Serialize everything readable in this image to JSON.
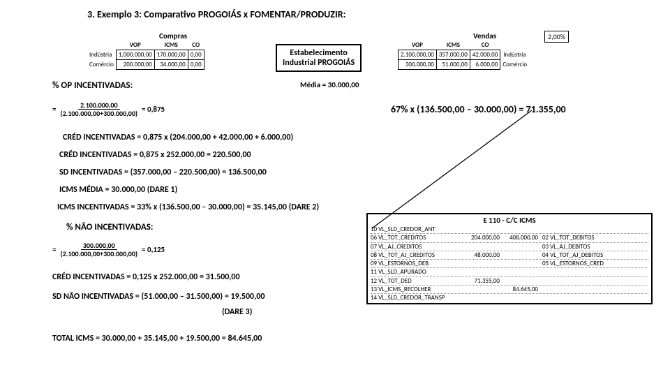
{
  "title": "3. Exemplo 3: Comparativo PROGOIÁS x FOMENTAR/PRODUZIR:",
  "compras": {
    "label": "Compras",
    "cols": [
      "VOP",
      "ICMS",
      "CO"
    ],
    "rows": [
      {
        "label": "Indústria",
        "vop": "1.000.000,00",
        "icms": "170.000,00",
        "co": "0,00"
      },
      {
        "label": "Comércio",
        "vop": "200.000,00",
        "icms": "34.000,00",
        "co": "0,00"
      }
    ]
  },
  "center_box": {
    "l1": "Estabelecimento",
    "l2": "Industrial PROGOIÁS"
  },
  "vendas": {
    "label": "Vendas",
    "cols": [
      "VOP",
      "ICMS",
      "CO"
    ],
    "rows": [
      {
        "vop": "2.100.000,00",
        "icms": "357.000,00",
        "co": "42.000,00",
        "label": "Indústria"
      },
      {
        "vop": "300.000,00",
        "icms": "51.000,00",
        "co": "6.000,00",
        "label": "Comércio"
      }
    ]
  },
  "pct_box": "2,00%",
  "media": "Média = 30.000,00",
  "op_inc": "% OP INCENTIVADAS:",
  "frac1": {
    "eq": "=",
    "num": "2.100.000,00",
    "den": "(2.100.000,00+300.000,00)",
    "res": "= 0,875"
  },
  "big_calc": "67% x (136.500,00 – 30.000,00) = 71.355,00",
  "lines": [
    "CRÉD INCENTIVADAS = 0,875 x (204.000,00 + 42.000,00 + 6.000,00)",
    "CRÉD INCENTIVADAS = 0,875 x 252.000,00 = 220.500,00",
    "SD INCENTIVADAS = (357.000,00 – 220.500,00) = 136.500,00",
    "ICMS MÉDIA = 30.000,00 (DARE 1)",
    "ICMS INCENTIVADAS = 33% x (136.500,00 – 30.000,00) = 35.145,00 (DARE 2)"
  ],
  "nao_inc": "% NÃO INCENTIVADAS:",
  "frac2": {
    "eq": "=",
    "num": "300.000,00",
    "den": "(2.100.000,00+300.000,00)",
    "res": "= 0,125"
  },
  "lines2": [
    "CRÉD INCENTIVADAS = 0,125 x 252.000,00 = 31.500,00",
    "SD NÃO INCENTIVADAS = (51.000,00 – 31.500,00) = 19.500,00",
    "(DARE 3)"
  ],
  "total": "TOTAL ICMS = 30.000,00 + 35.145,00 + 19.500,00 = 84.645,00",
  "e110": {
    "title": "E 110 - C/C ICMS",
    "rows": [
      {
        "l": "10 VL_SLD_CREDOR_ANT",
        "v1": "",
        "v2": "",
        "r": ""
      },
      {
        "l": "06 VL_TOT_CREDITOS",
        "v1": "204.000,00",
        "v2": "408.000,00",
        "r": "02 VL_TOT_DEBITOS"
      },
      {
        "l": "07 VL_AJ_CREDITOS",
        "v1": "",
        "v2": "",
        "r": "03 VL_AJ_DEBITOS"
      },
      {
        "l": "08 VL_TOT_AJ_CREDITOS",
        "v1": "48.000,00",
        "v2": "",
        "r": "04 VL_TOT_AJ_DEBITOS"
      },
      {
        "l": "09 VL_ESTORNOS_DEB",
        "v1": "",
        "v2": "",
        "r": "05 VL_ESTORNOS_CRED"
      },
      {
        "l": "11 VL_SLD_APURADO",
        "v1": "",
        "v2": "",
        "r": ""
      },
      {
        "l": "12 VL_TOT_DED",
        "v1": "71.355,00",
        "v2": "",
        "r": ""
      },
      {
        "l": "13 VL_ICMS_RECOLHER",
        "v1": "",
        "v2": "84.645,00",
        "r": ""
      },
      {
        "l": "14 VL_SLD_CREDOR_TRANSP",
        "v1": "",
        "v2": "",
        "r": ""
      }
    ]
  }
}
